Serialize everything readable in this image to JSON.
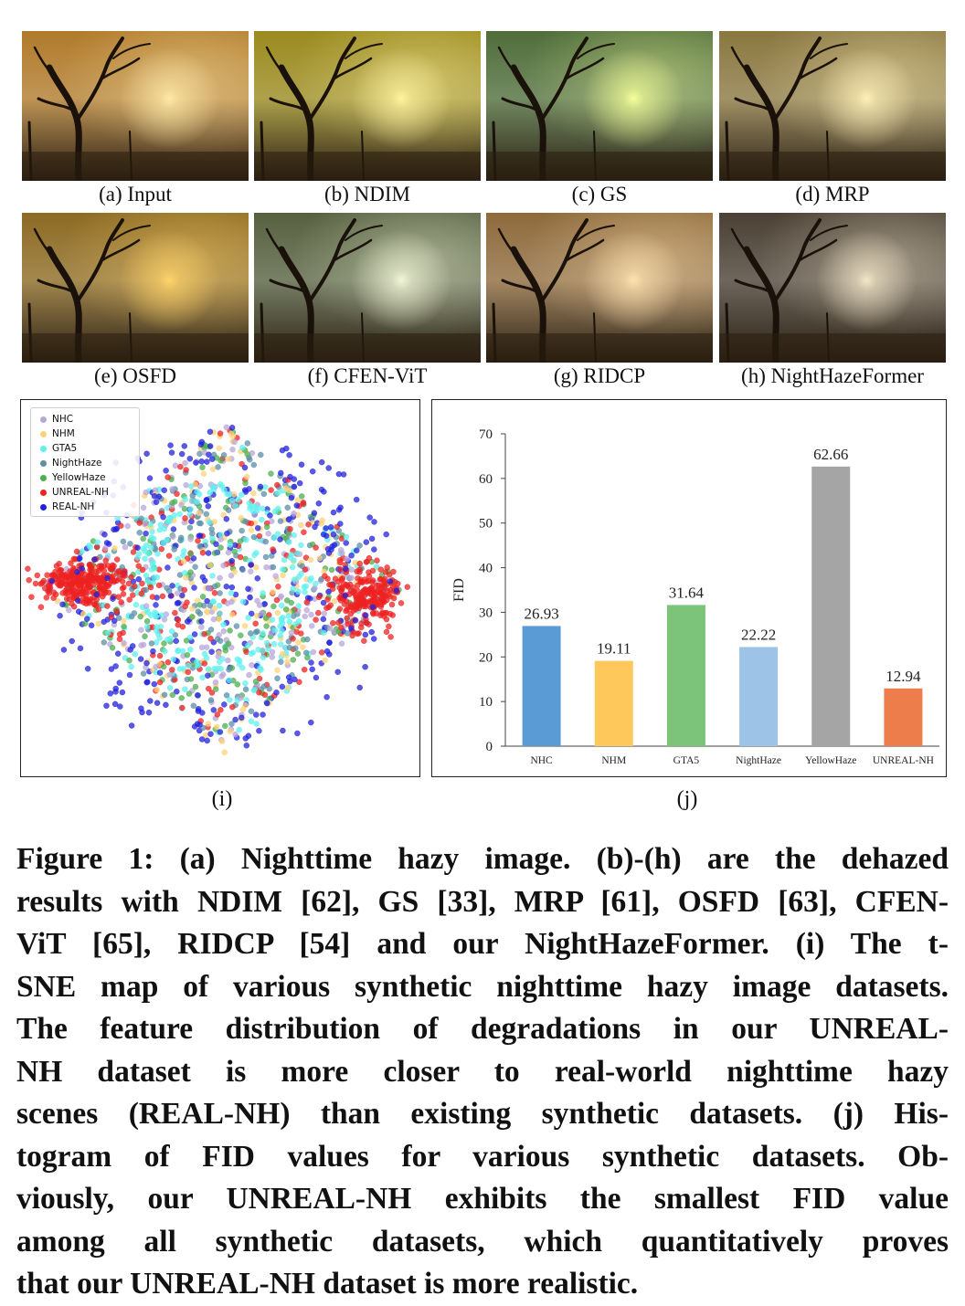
{
  "photos": [
    {
      "label": "(a) Input",
      "tint": "#b07a2a",
      "glow": "#ffe9a8"
    },
    {
      "label": "(b) NDIM",
      "tint": "#9a8a1e",
      "glow": "#fff3a0"
    },
    {
      "label": "(c) GS",
      "tint": "#4f6d3a",
      "glow": "#f4ff9a"
    },
    {
      "label": "(d) MRP",
      "tint": "#8a7740",
      "glow": "#fff0b8"
    },
    {
      "label": "(e) OSFD",
      "tint": "#8c6a22",
      "glow": "#ffd36a"
    },
    {
      "label": "(f) CFEN-ViT",
      "tint": "#56603f",
      "glow": "#f2f6d8"
    },
    {
      "label": "(g) RIDCP",
      "tint": "#8e6a3c",
      "glow": "#ffe2b0"
    },
    {
      "label": "(h) NightHazeFormer",
      "tint": "#4a4034",
      "glow": "#f3e6c8"
    }
  ],
  "panel_labels": {
    "i": "(i)",
    "j": "(j)"
  },
  "tsne": {
    "legend": [
      {
        "name": "NHC",
        "color": "#b8a6d9"
      },
      {
        "name": "NHM",
        "color": "#ffd27a"
      },
      {
        "name": "GTA5",
        "color": "#5ff0ee"
      },
      {
        "name": "NightHaze",
        "color": "#5b8fa8"
      },
      {
        "name": "YellowHaze",
        "color": "#4caf50"
      },
      {
        "name": "UNREAL-NH",
        "color": "#ee2222"
      },
      {
        "name": "REAL-NH",
        "color": "#2222dd"
      }
    ]
  },
  "chart_data": {
    "type": "bar",
    "categories": [
      "NHC",
      "NHM",
      "GTA5",
      "NightHaze",
      "YellowHaze",
      "UNREAL-NH"
    ],
    "values": [
      26.93,
      19.11,
      31.64,
      22.22,
      62.66,
      12.94
    ],
    "value_labels": [
      "26.93",
      "19.11",
      "31.64",
      "22.22",
      "62.66",
      "12.94"
    ],
    "colors": [
      "#5b9bd5",
      "#ffc85a",
      "#7cc47a",
      "#9dc3e6",
      "#a5a5a5",
      "#ed7d4b"
    ],
    "ylabel": "FID",
    "ylim": [
      0,
      70
    ],
    "yticks": [
      "0",
      "10",
      "20",
      "30",
      "40",
      "50",
      "60",
      "70"
    ],
    "grid": false
  },
  "caption": {
    "lines": [
      "Figure 1: (a) Nighttime hazy image. (b)-(h) are the dehazed",
      "results with NDIM [62], GS [33], MRP [61], OSFD [63], CFEN-",
      "ViT [65], RIDCP [54] and our NightHazeFormer. (i) The t-",
      "SNE map of various synthetic nighttime hazy image datasets.",
      "The feature distribution of degradations in our UNREAL-",
      "NH dataset is more closer to real-world nighttime hazy",
      "scenes (REAL-NH) than existing synthetic datasets. (j) His-",
      "togram of FID values for various synthetic datasets. Ob-",
      "viously, our UNREAL-NH exhibits the smallest FID value",
      "among all synthetic datasets, which quantitatively proves",
      "that our UNREAL-NH dataset is more realistic."
    ]
  }
}
